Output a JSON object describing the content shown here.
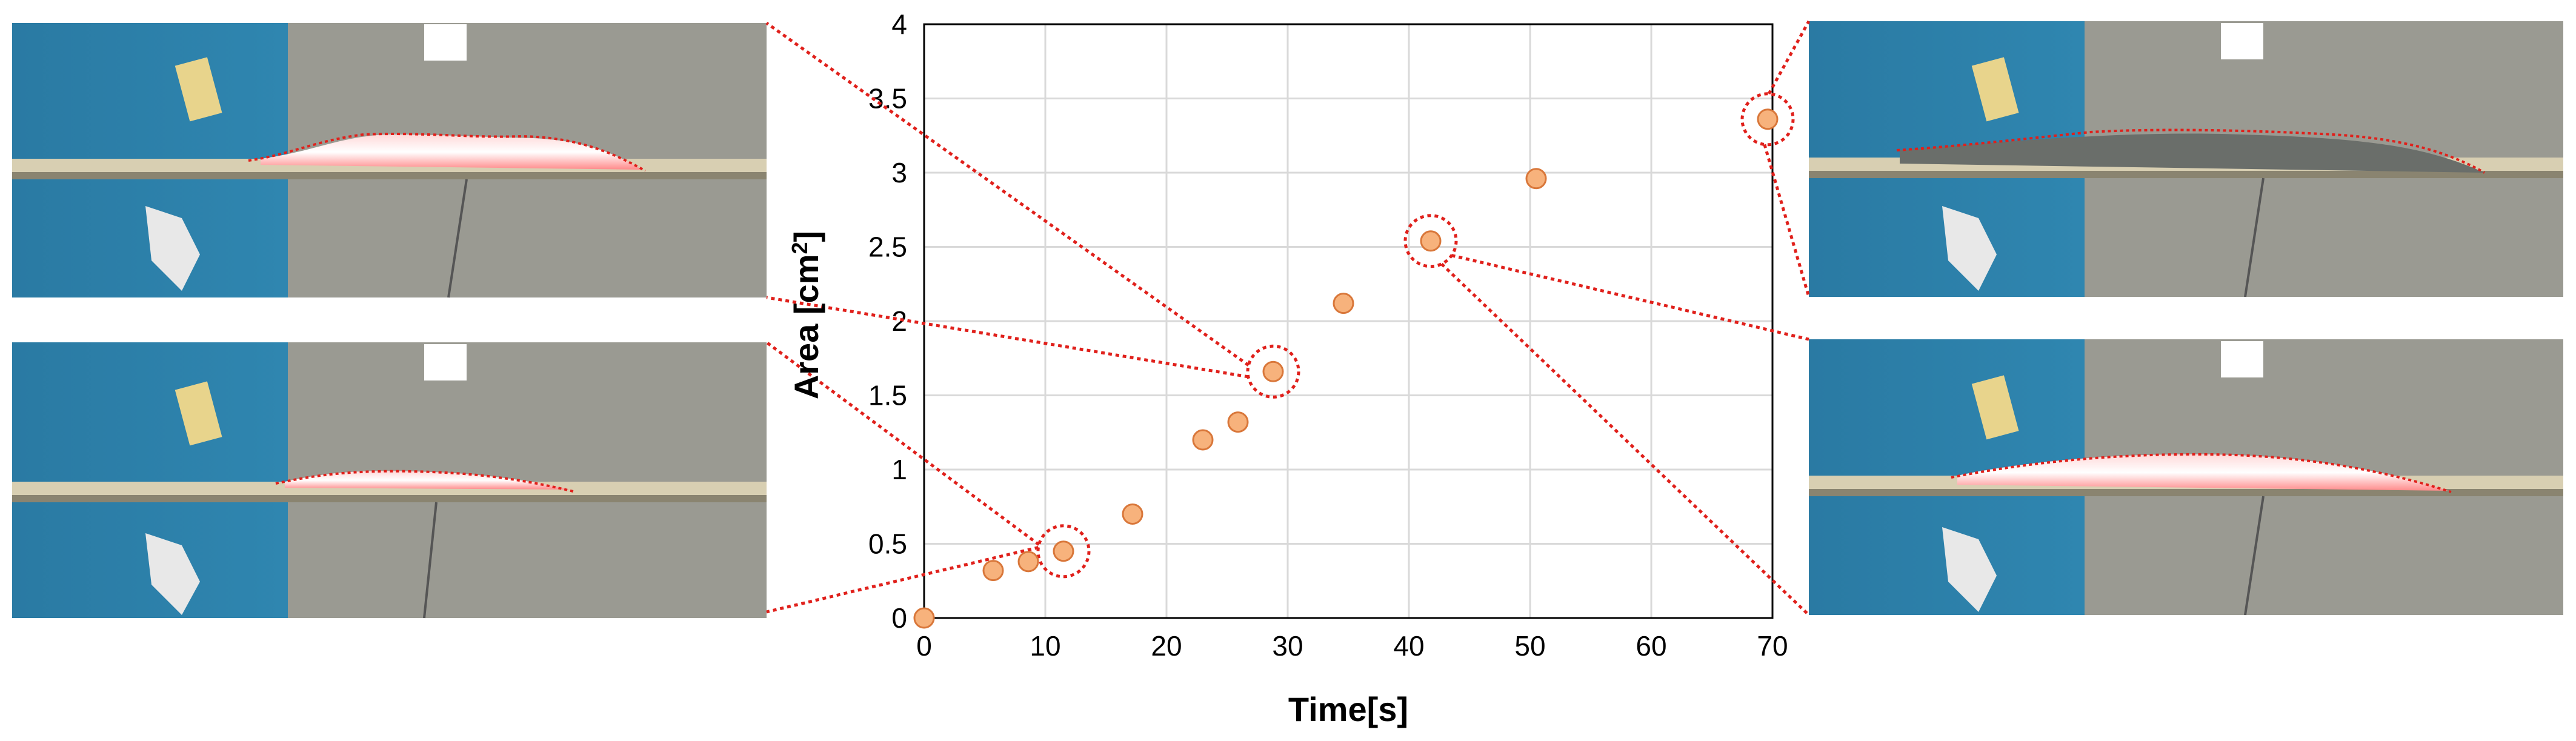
{
  "chart_data": {
    "type": "scatter",
    "title": "",
    "xlabel": "Time[s]",
    "ylabel_main": "Area [cm",
    "ylabel_sup": "2",
    "ylabel_end": "]",
    "xlim": [
      0,
      70
    ],
    "ylim": [
      0,
      4
    ],
    "grid": true,
    "x_ticks": [
      0,
      10,
      20,
      30,
      40,
      50,
      60,
      70
    ],
    "y_ticks": [
      0,
      0.5,
      1,
      1.5,
      2,
      2.5,
      3,
      3.5,
      4
    ],
    "y_tick_labels": [
      "0",
      "0.5",
      "1",
      "1.5",
      "2",
      "2.5",
      "3",
      "3.5",
      "4"
    ],
    "series": [
      {
        "name": "Area",
        "x": [
          0,
          5.7,
          8.6,
          11.5,
          17.2,
          23.0,
          25.9,
          28.8,
          34.6,
          41.8,
          50.5,
          69.6
        ],
        "y": [
          0.0,
          0.32,
          0.38,
          0.45,
          0.7,
          1.2,
          1.32,
          1.66,
          2.12,
          2.54,
          2.96,
          3.36
        ]
      }
    ],
    "highlighted_points": [
      3,
      7,
      9,
      11
    ],
    "inset_images": [
      {
        "name": "photo-top-left",
        "point_index": 7,
        "description": "Burning region photograph at t = 28.8 s"
      },
      {
        "name": "photo-bottom-left",
        "point_index": 3,
        "description": "Burning region photograph at t = 11.5 s"
      },
      {
        "name": "photo-top-right",
        "point_index": 11,
        "description": "Burning region photograph at t = 69.6 s"
      },
      {
        "name": "photo-bottom-right",
        "point_index": 9,
        "description": "Burning region photograph at t = 41.8 s"
      }
    ]
  },
  "colors": {
    "marker_fill": "#f7b27c",
    "marker_stroke": "#d9773a",
    "leader": "#e0201b",
    "grid": "#d9d9d9",
    "axis": "#000000"
  }
}
